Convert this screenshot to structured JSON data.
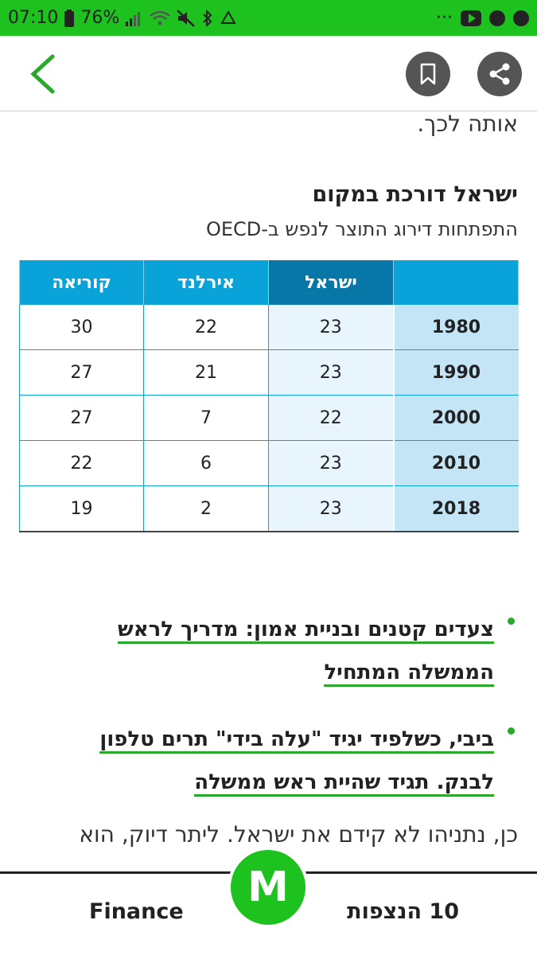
{
  "status_bar": {
    "time": "07:10",
    "battery": "76%",
    "more": "···"
  },
  "article": {
    "para_top": "אותה לכך.",
    "table_title": "ישראל דורכת במקום",
    "table_subtitle": "התפתחות דירוג התוצר לנפש ב-OECD",
    "table": {
      "headers": [
        "",
        "ישראל",
        "אירלנד",
        "קוריאה"
      ],
      "rows": [
        [
          "1980",
          "23",
          "22",
          "30"
        ],
        [
          "1990",
          "23",
          "21",
          "27"
        ],
        [
          "2000",
          "22",
          "7",
          "27"
        ],
        [
          "2010",
          "23",
          "6",
          "22"
        ],
        [
          "2018",
          "23",
          "2",
          "19"
        ]
      ]
    },
    "related": [
      "צעדים קטנים ובניית אמון: מדריך לראש הממשלה המתחיל",
      "ביבי, כשלפיד יגיד \"עלה בידי\" תרים טלפון לבנק. תגיד שהיית ראש ממשלה"
    ],
    "para_bottom": "כן, נתניהו לא קידם את ישראל. ליתר דיוק, הוא"
  },
  "bottom_bar": {
    "left_tab": "Finance",
    "logo": "M",
    "right_tab": "10 הנצפות"
  },
  "colors": {
    "brand_green": "#1ec21e",
    "table_header": "#0aa3d9",
    "table_header_highlight": "#0677a6",
    "link_underline": "#2aa82a"
  }
}
